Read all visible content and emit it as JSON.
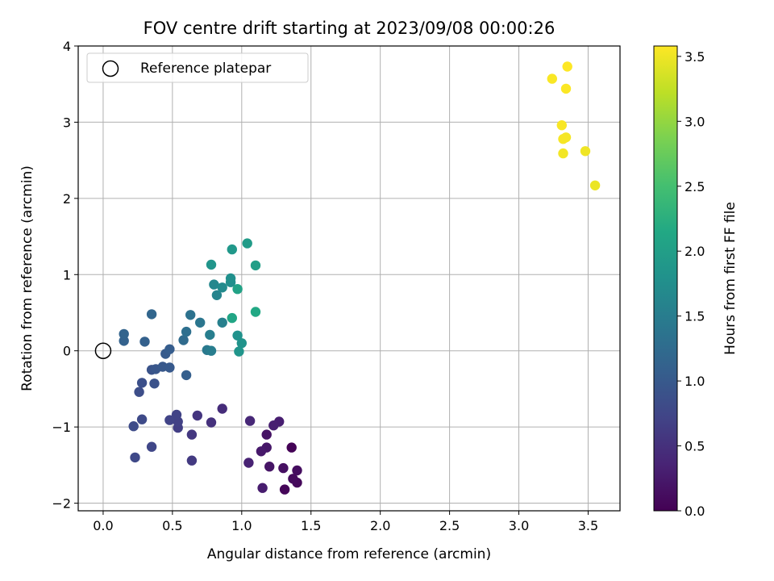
{
  "chart_data": {
    "type": "scatter",
    "title": "FOV centre drift starting at 2023/09/08 00:00:26",
    "xlabel": "Angular distance from reference (arcmin)",
    "ylabel": "Rotation from reference (arcmin)",
    "xlim": [
      -0.18,
      3.73
    ],
    "ylim": [
      -2.1,
      4.0
    ],
    "xticks": [
      0.0,
      0.5,
      1.0,
      1.5,
      2.0,
      2.5,
      3.0,
      3.5
    ],
    "xtick_labels": [
      "0.0",
      "0.5",
      "1.0",
      "1.5",
      "2.0",
      "2.5",
      "3.0",
      "3.5"
    ],
    "yticks": [
      -2,
      -1,
      0,
      1,
      2,
      3,
      4
    ],
    "ytick_labels": [
      "−2",
      "−1",
      "0",
      "1",
      "2",
      "3",
      "4"
    ],
    "grid": true,
    "legend": {
      "placement": "upper-left",
      "entries": [
        "Reference platepar"
      ]
    },
    "reference_point": {
      "x": 0.0,
      "y": 0.0
    },
    "colorbar": {
      "label": "Hours from first FF file",
      "colormap": "viridis",
      "range": [
        0.0,
        3.58
      ],
      "ticks": [
        0.0,
        0.5,
        1.0,
        1.5,
        2.0,
        2.5,
        3.0,
        3.5
      ],
      "tick_labels": [
        "0.0",
        "0.5",
        "1.0",
        "1.5",
        "2.0",
        "2.5",
        "3.0",
        "3.5"
      ]
    },
    "points": [
      {
        "x": 1.36,
        "y": -1.27,
        "t": 0.02
      },
      {
        "x": 1.31,
        "y": -1.82,
        "t": 0.05
      },
      {
        "x": 1.4,
        "y": -1.73,
        "t": 0.08
      },
      {
        "x": 1.37,
        "y": -1.68,
        "t": 0.1
      },
      {
        "x": 1.4,
        "y": -1.57,
        "t": 0.12
      },
      {
        "x": 1.3,
        "y": -1.54,
        "t": 0.15
      },
      {
        "x": 1.18,
        "y": -1.1,
        "t": 0.18
      },
      {
        "x": 1.2,
        "y": -1.52,
        "t": 0.2
      },
      {
        "x": 1.18,
        "y": -1.27,
        "t": 0.22
      },
      {
        "x": 1.14,
        "y": -1.32,
        "t": 0.25
      },
      {
        "x": 1.15,
        "y": -1.8,
        "t": 0.28
      },
      {
        "x": 1.27,
        "y": -0.93,
        "t": 0.3
      },
      {
        "x": 1.23,
        "y": -0.98,
        "t": 0.32
      },
      {
        "x": 1.05,
        "y": -1.47,
        "t": 0.35
      },
      {
        "x": 1.06,
        "y": -0.92,
        "t": 0.4
      },
      {
        "x": 0.86,
        "y": -0.76,
        "t": 0.45
      },
      {
        "x": 0.78,
        "y": -0.94,
        "t": 0.5
      },
      {
        "x": 0.68,
        "y": -0.85,
        "t": 0.55
      },
      {
        "x": 0.64,
        "y": -1.1,
        "t": 0.58
      },
      {
        "x": 0.64,
        "y": -1.44,
        "t": 0.6
      },
      {
        "x": 0.54,
        "y": -1.01,
        "t": 0.65
      },
      {
        "x": 0.54,
        "y": -0.93,
        "t": 0.68
      },
      {
        "x": 0.53,
        "y": -0.84,
        "t": 0.7
      },
      {
        "x": 0.48,
        "y": -0.91,
        "t": 0.72
      },
      {
        "x": 0.35,
        "y": -1.26,
        "t": 0.75
      },
      {
        "x": 0.23,
        "y": -1.4,
        "t": 0.78
      },
      {
        "x": 0.28,
        "y": -0.9,
        "t": 0.8
      },
      {
        "x": 0.22,
        "y": -0.99,
        "t": 0.82
      },
      {
        "x": 0.26,
        "y": -0.54,
        "t": 0.85
      },
      {
        "x": 0.28,
        "y": -0.42,
        "t": 0.88
      },
      {
        "x": 0.37,
        "y": -0.43,
        "t": 0.9
      },
      {
        "x": 0.35,
        "y": -0.25,
        "t": 0.92
      },
      {
        "x": 0.38,
        "y": -0.24,
        "t": 0.95
      },
      {
        "x": 0.43,
        "y": -0.21,
        "t": 0.98
      },
      {
        "x": 0.48,
        "y": -0.22,
        "t": 1.0
      },
      {
        "x": 0.45,
        "y": -0.04,
        "t": 1.02
      },
      {
        "x": 0.48,
        "y": 0.02,
        "t": 1.05
      },
      {
        "x": 0.6,
        "y": -0.32,
        "t": 1.08
      },
      {
        "x": 0.3,
        "y": 0.12,
        "t": 1.1
      },
      {
        "x": 0.15,
        "y": 0.13,
        "t": 1.12
      },
      {
        "x": 0.15,
        "y": 0.22,
        "t": 1.15
      },
      {
        "x": 0.35,
        "y": 0.48,
        "t": 1.18
      },
      {
        "x": 0.58,
        "y": 0.14,
        "t": 1.25
      },
      {
        "x": 0.6,
        "y": 0.25,
        "t": 1.3
      },
      {
        "x": 0.63,
        "y": 0.47,
        "t": 1.35
      },
      {
        "x": 0.7,
        "y": 0.37,
        "t": 1.4
      },
      {
        "x": 0.75,
        "y": 0.01,
        "t": 1.45
      },
      {
        "x": 0.78,
        "y": 0.0,
        "t": 1.5
      },
      {
        "x": 0.77,
        "y": 0.21,
        "t": 1.52
      },
      {
        "x": 0.86,
        "y": 0.37,
        "t": 1.55
      },
      {
        "x": 0.82,
        "y": 0.73,
        "t": 1.6
      },
      {
        "x": 0.8,
        "y": 0.87,
        "t": 1.65
      },
      {
        "x": 0.86,
        "y": 0.83,
        "t": 1.7
      },
      {
        "x": 0.92,
        "y": 0.9,
        "t": 1.75
      },
      {
        "x": 0.92,
        "y": 0.95,
        "t": 1.78
      },
      {
        "x": 0.97,
        "y": 0.2,
        "t": 1.8
      },
      {
        "x": 1.0,
        "y": 0.1,
        "t": 1.82
      },
      {
        "x": 0.98,
        "y": -0.01,
        "t": 1.85
      },
      {
        "x": 0.78,
        "y": 1.13,
        "t": 1.85
      },
      {
        "x": 0.93,
        "y": 1.33,
        "t": 1.9
      },
      {
        "x": 1.04,
        "y": 1.41,
        "t": 1.95
      },
      {
        "x": 1.1,
        "y": 1.12,
        "t": 2.0
      },
      {
        "x": 0.97,
        "y": 0.81,
        "t": 2.05
      },
      {
        "x": 0.93,
        "y": 0.43,
        "t": 2.1
      },
      {
        "x": 1.1,
        "y": 0.51,
        "t": 2.15
      },
      {
        "x": 3.55,
        "y": 2.17,
        "t": 3.48
      },
      {
        "x": 3.48,
        "y": 2.62,
        "t": 3.5
      },
      {
        "x": 3.32,
        "y": 2.59,
        "t": 3.52
      },
      {
        "x": 3.34,
        "y": 2.8,
        "t": 3.53
      },
      {
        "x": 3.32,
        "y": 2.78,
        "t": 3.54
      },
      {
        "x": 3.31,
        "y": 2.96,
        "t": 3.55
      },
      {
        "x": 3.24,
        "y": 3.57,
        "t": 3.56
      },
      {
        "x": 3.34,
        "y": 3.44,
        "t": 3.57
      },
      {
        "x": 3.35,
        "y": 3.73,
        "t": 3.58
      }
    ]
  }
}
